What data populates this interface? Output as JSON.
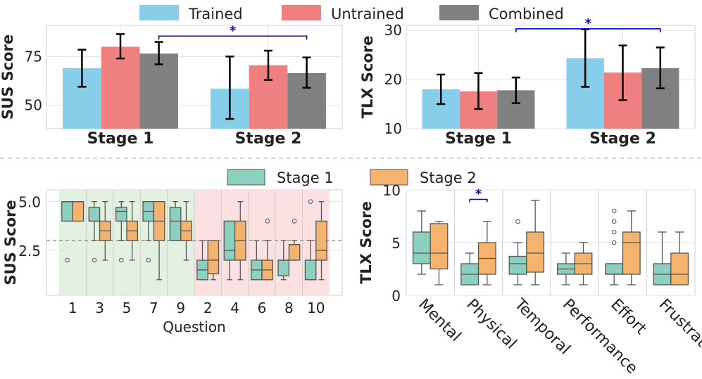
{
  "colors": {
    "trained": "#87CEEB",
    "untrained": "#F08080",
    "combined": "#808080",
    "stage1": "#8ED0BF",
    "stage2": "#F4B36E",
    "sig": "#0000cc",
    "positive_bg": "#E3F1E0",
    "negative_bg": "#FCE1E3"
  },
  "legend_top": [
    "Trained",
    "Untrained",
    "Combined"
  ],
  "legend_mid": [
    "Stage 1",
    "Stage 2"
  ],
  "chart_data": [
    {
      "type": "bar",
      "id": "sus_bar",
      "ylabel": "SUS Score",
      "ylim": [
        38,
        91
      ],
      "yticks": [
        50,
        75
      ],
      "categories": [
        "Stage 1",
        "Stage 2"
      ],
      "series": [
        {
          "name": "Trained",
          "values": [
            69,
            58.5
          ],
          "err_low": [
            59.5,
            43
          ],
          "err_high": [
            78.5,
            75
          ]
        },
        {
          "name": "Untrained",
          "values": [
            80,
            70.5
          ],
          "err_low": [
            74,
            63
          ],
          "err_high": [
            86.5,
            78
          ]
        },
        {
          "name": "Combined",
          "values": [
            76.5,
            66.5
          ],
          "err_low": [
            71,
            59
          ],
          "err_high": [
            82.5,
            74.5
          ]
        }
      ],
      "significance": {
        "label": "*",
        "between": [
          "Stage 1 Combined",
          "Stage 2 Combined"
        ],
        "y": 85.5
      }
    },
    {
      "type": "bar",
      "id": "tlx_bar",
      "ylabel": "TLX Score",
      "ylim": [
        10,
        31
      ],
      "yticks": [
        10,
        20,
        30
      ],
      "categories": [
        "Stage 1",
        "Stage 2"
      ],
      "series": [
        {
          "name": "Trained",
          "values": [
            18,
            24.3
          ],
          "err_low": [
            15,
            18.5
          ],
          "err_high": [
            21,
            30.2
          ]
        },
        {
          "name": "Untrained",
          "values": [
            17.6,
            21.4
          ],
          "err_low": [
            14,
            15.8
          ],
          "err_high": [
            21.3,
            26.9
          ]
        },
        {
          "name": "Combined",
          "values": [
            17.8,
            22.3
          ],
          "err_low": [
            15.2,
            18.2
          ],
          "err_high": [
            20.4,
            26.5
          ]
        }
      ],
      "significance": {
        "label": "*",
        "between": [
          "Stage 1 Combined",
          "Stage 2 Combined"
        ],
        "y": 30.3
      }
    },
    {
      "type": "box",
      "id": "sus_box",
      "ylabel": "SUS Score",
      "xlabel": "Question",
      "ylim": [
        0.2,
        5.6
      ],
      "yticks": [
        2.5,
        5.0
      ],
      "ytick_labels": [
        "2.5",
        "5.0"
      ],
      "reference_line": 3,
      "categories": [
        "1",
        "3",
        "5",
        "7",
        "9",
        "2",
        "4",
        "6",
        "8",
        "10"
      ],
      "series": [
        {
          "name": "Stage 1",
          "boxes": [
            {
              "min": 4,
              "q1": 4,
              "median": 5,
              "q3": 5,
              "max": 5,
              "outliers": [
                2
              ]
            },
            {
              "min": 3,
              "q1": 4,
              "median": 4,
              "q3": 4.7,
              "max": 5,
              "outliers": [
                2
              ]
            },
            {
              "min": 3,
              "q1": 4,
              "median": 4.5,
              "q3": 4.7,
              "max": 5,
              "outliers": [
                2
              ]
            },
            {
              "min": 3,
              "q1": 4,
              "median": 4.5,
              "q3": 5,
              "max": 5,
              "outliers": [
                2
              ]
            },
            {
              "min": 3,
              "q1": 3,
              "median": 4,
              "q3": 4.7,
              "max": 5,
              "outliers": []
            },
            {
              "min": 1,
              "q1": 1,
              "median": 1.5,
              "q3": 2,
              "max": 3,
              "outliers": []
            },
            {
              "min": 1,
              "q1": 2,
              "median": 2.5,
              "q3": 4,
              "max": 4,
              "outliers": []
            },
            {
              "min": 1,
              "q1": 1,
              "median": 1.5,
              "q3": 2,
              "max": 3,
              "outliers": []
            },
            {
              "min": 1,
              "q1": 1.2,
              "median": 2,
              "q3": 2,
              "max": 3,
              "outliers": []
            },
            {
              "min": 1,
              "q1": 1,
              "median": 1,
              "q3": 2,
              "max": 3,
              "outliers": [
                5
              ]
            }
          ]
        },
        {
          "name": "Stage 2",
          "boxes": [
            {
              "min": 4,
              "q1": 4,
              "median": 5,
              "q3": 5,
              "max": 5,
              "outliers": []
            },
            {
              "min": 2,
              "q1": 3,
              "median": 3.5,
              "q3": 4,
              "max": 5,
              "outliers": []
            },
            {
              "min": 2,
              "q1": 3,
              "median": 3.5,
              "q3": 4,
              "max": 5,
              "outliers": []
            },
            {
              "min": 1,
              "q1": 3,
              "median": 4,
              "q3": 5,
              "max": 5,
              "outliers": []
            },
            {
              "min": 2,
              "q1": 3,
              "median": 3.5,
              "q3": 4,
              "max": 5,
              "outliers": []
            },
            {
              "min": 1,
              "q1": 1.3,
              "median": 2,
              "q3": 3,
              "max": 3,
              "outliers": []
            },
            {
              "min": 1,
              "q1": 2,
              "median": 3,
              "q3": 4,
              "max": 5,
              "outliers": []
            },
            {
              "min": 1,
              "q1": 1,
              "median": 1.5,
              "q3": 2,
              "max": 3,
              "outliers": [
                4
              ]
            },
            {
              "min": 2,
              "q1": 2,
              "median": 2.8,
              "q3": 2.8,
              "max": 3,
              "outliers": [
                4
              ]
            },
            {
              "min": 1,
              "q1": 2,
              "median": 2.5,
              "q3": 4,
              "max": 5,
              "outliers": []
            }
          ]
        }
      ],
      "shaded_groups": [
        {
          "name": "positive",
          "categories": [
            "1",
            "3",
            "5",
            "7",
            "9"
          ]
        },
        {
          "name": "negative",
          "categories": [
            "2",
            "4",
            "6",
            "8",
            "10"
          ]
        }
      ]
    },
    {
      "type": "box",
      "id": "tlx_box",
      "ylabel": "TLX Score",
      "ylim": [
        0,
        10
      ],
      "yticks": [
        0,
        5,
        10
      ],
      "categories": [
        "Mental",
        "Physical",
        "Temporal",
        "Performance",
        "Effort",
        "Frustration"
      ],
      "series": [
        {
          "name": "Stage 1",
          "boxes": [
            {
              "min": 2,
              "q1": 3,
              "median": 4,
              "q3": 6,
              "max": 8,
              "outliers": []
            },
            {
              "min": 1,
              "q1": 1,
              "median": 2,
              "q3": 3,
              "max": 4,
              "outliers": []
            },
            {
              "min": 1,
              "q1": 2,
              "median": 3,
              "q3": 3.7,
              "max": 5,
              "outliers": [
                7
              ]
            },
            {
              "min": 1,
              "q1": 2,
              "median": 2.5,
              "q3": 3,
              "max": 4,
              "outliers": []
            },
            {
              "min": 1,
              "q1": 2,
              "median": 2,
              "q3": 3,
              "max": 3,
              "outliers": [
                5,
                6,
                7,
                8
              ]
            },
            {
              "min": 1,
              "q1": 1,
              "median": 2,
              "q3": 3,
              "max": 6,
              "outliers": []
            }
          ]
        },
        {
          "name": "Stage 2",
          "boxes": [
            {
              "min": 1,
              "q1": 2.5,
              "median": 4,
              "q3": 6.8,
              "max": 7,
              "outliers": []
            },
            {
              "min": 1,
              "q1": 2,
              "median": 3.5,
              "q3": 5,
              "max": 7,
              "outliers": []
            },
            {
              "min": 1,
              "q1": 2.2,
              "median": 4,
              "q3": 6,
              "max": 9,
              "outliers": []
            },
            {
              "min": 1,
              "q1": 2,
              "median": 3,
              "q3": 4,
              "max": 5,
              "outliers": []
            },
            {
              "min": 1,
              "q1": 2,
              "median": 5,
              "q3": 6,
              "max": 8,
              "outliers": []
            },
            {
              "min": 1,
              "q1": 1,
              "median": 2,
              "q3": 4,
              "max": 6,
              "outliers": []
            }
          ]
        }
      ],
      "significance": {
        "label": "*",
        "category": "Physical",
        "y": 9.1
      }
    }
  ]
}
